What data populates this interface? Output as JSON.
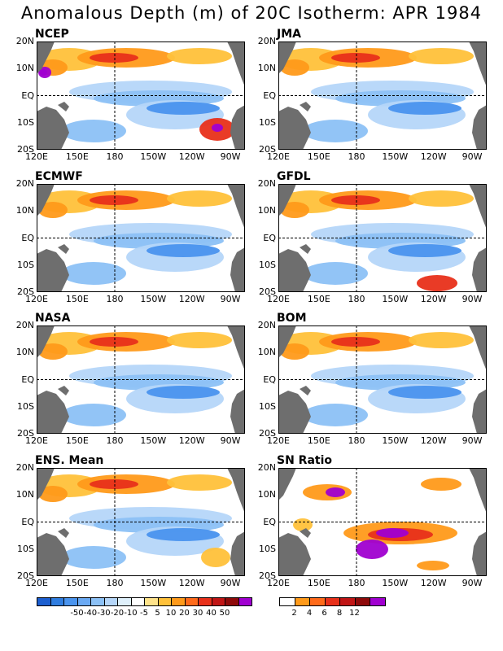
{
  "title": "Anomalous Depth (m) of 20C Isotherm: APR 1984",
  "lat_labels": [
    "20N",
    "10N",
    "EQ",
    "10S",
    "20S"
  ],
  "lon_labels": [
    "120E",
    "150E",
    "180",
    "150W",
    "120W",
    "90W"
  ],
  "panels": [
    {
      "name": "NCEP"
    },
    {
      "name": "JMA"
    },
    {
      "name": "ECMWF"
    },
    {
      "name": "GFDL"
    },
    {
      "name": "NASA"
    },
    {
      "name": "BOM"
    },
    {
      "name": "ENS. Mean"
    },
    {
      "name": "SN Ratio"
    }
  ],
  "colorbar_depth": {
    "labels": [
      "-50",
      "-40",
      "-30",
      "-20",
      "-10",
      "-5",
      "5",
      "10",
      "20",
      "30",
      "40",
      "50"
    ],
    "colors": [
      "#1c5fd0",
      "#2f7de0",
      "#4a94ee",
      "#6aa9f3",
      "#8cc1f6",
      "#b5d6f9",
      "#dff0fb",
      "#ffffff",
      "#ffe38a",
      "#ffc13a",
      "#ff9a1a",
      "#ff6a1a",
      "#e8301a",
      "#c01515",
      "#8e0a0a",
      "#a000d0"
    ]
  },
  "colorbar_sn": {
    "labels": [
      "2",
      "4",
      "6",
      "8",
      "12"
    ],
    "colors": [
      "#ffffff",
      "#ff9a1a",
      "#ff6a1a",
      "#e8301a",
      "#c01515",
      "#8e0a0a",
      "#a000d0"
    ]
  },
  "colors": {
    "land": "#6e6e6e",
    "blue_light": "#b5d6f9",
    "blue_mid": "#8cc1f6",
    "blue_dark": "#4a94ee",
    "orange_light": "#ffc13a",
    "orange": "#ff9a1a",
    "red": "#e8301a",
    "purple": "#a000d0"
  }
}
